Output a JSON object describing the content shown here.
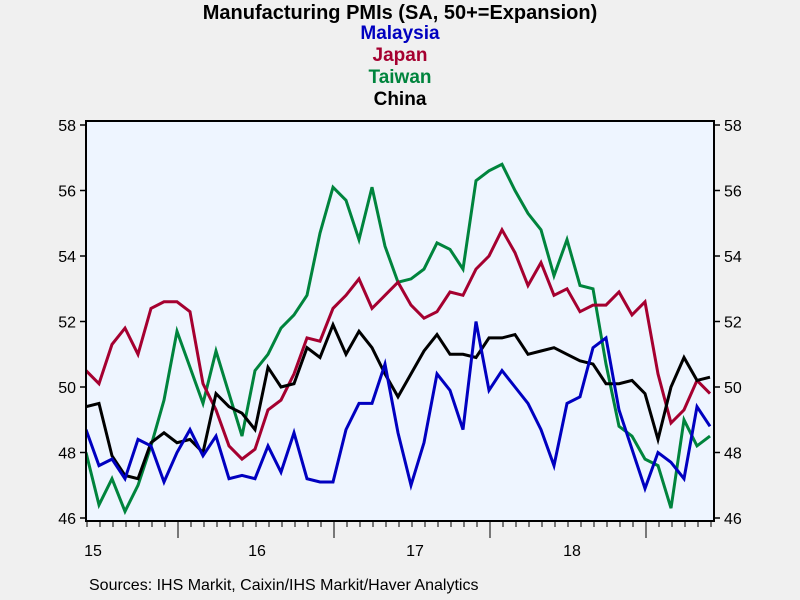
{
  "chart_data": {
    "type": "line",
    "title": "Manufacturing PMIs (SA, 50+=Expansion)",
    "xlabel": "",
    "ylabel": "",
    "ylim": [
      46,
      58
    ],
    "yticks": [
      46,
      48,
      50,
      52,
      54,
      56,
      58
    ],
    "xtick_labels": [
      "15",
      "16",
      "17",
      "18"
    ],
    "x": [
      "2015-05",
      "2015-06",
      "2015-07",
      "2015-08",
      "2015-09",
      "2015-10",
      "2015-11",
      "2015-12",
      "2016-01",
      "2016-02",
      "2016-03",
      "2016-04",
      "2016-05",
      "2016-06",
      "2016-07",
      "2016-08",
      "2016-09",
      "2016-10",
      "2016-11",
      "2016-12",
      "2017-01",
      "2017-02",
      "2017-03",
      "2017-04",
      "2017-05",
      "2017-06",
      "2017-07",
      "2017-08",
      "2017-09",
      "2017-10",
      "2017-11",
      "2017-12",
      "2018-01",
      "2018-02",
      "2018-03",
      "2018-04",
      "2018-05",
      "2018-06",
      "2018-07",
      "2018-08",
      "2018-09",
      "2018-10",
      "2018-11",
      "2018-12",
      "2019-01",
      "2019-02",
      "2019-03",
      "2019-04",
      "2019-05"
    ],
    "grid": false,
    "legend": "top-center",
    "series": [
      {
        "name": "Malaysia",
        "color": "#0000C0",
        "values": [
          48.7,
          47.6,
          47.8,
          47.2,
          48.4,
          48.2,
          47.1,
          48.0,
          48.7,
          47.9,
          48.5,
          47.2,
          47.3,
          47.2,
          48.2,
          47.4,
          48.6,
          47.2,
          47.1,
          47.1,
          48.7,
          49.5,
          49.5,
          50.7,
          48.6,
          47.0,
          48.3,
          50.4,
          49.9,
          48.7,
          52.0,
          49.9,
          50.5,
          50.0,
          49.5,
          48.7,
          47.6,
          49.5,
          49.7,
          51.2,
          51.5,
          49.3,
          48.1,
          46.9,
          48.0,
          47.7,
          47.2,
          49.4,
          48.8
        ]
      },
      {
        "name": "Japan",
        "color": "#A50030",
        "values": [
          50.5,
          50.1,
          51.3,
          51.8,
          51.0,
          52.4,
          52.6,
          52.6,
          52.3,
          50.1,
          49.3,
          48.2,
          47.8,
          48.1,
          49.3,
          49.6,
          50.4,
          51.5,
          51.4,
          52.4,
          52.8,
          53.3,
          52.4,
          52.8,
          53.2,
          52.5,
          52.1,
          52.3,
          52.9,
          52.8,
          53.6,
          54.0,
          54.8,
          54.1,
          53.1,
          53.8,
          52.8,
          53.0,
          52.3,
          52.5,
          52.5,
          52.9,
          52.2,
          52.6,
          50.4,
          48.9,
          49.3,
          50.2,
          49.8
        ]
      },
      {
        "name": "Taiwan",
        "color": "#00843D",
        "values": [
          48.0,
          46.4,
          47.2,
          46.2,
          47.0,
          48.2,
          49.6,
          51.7,
          50.6,
          49.5,
          51.1,
          49.8,
          48.5,
          50.5,
          51.0,
          51.8,
          52.2,
          52.8,
          54.7,
          56.1,
          55.7,
          54.5,
          56.1,
          54.3,
          53.2,
          53.3,
          53.6,
          54.4,
          54.2,
          53.6,
          56.3,
          56.6,
          56.8,
          56.0,
          55.3,
          54.8,
          53.4,
          54.5,
          53.1,
          53.0,
          50.7,
          48.8,
          48.5,
          47.8,
          47.6,
          46.3,
          49.0,
          48.2,
          48.5
        ]
      },
      {
        "name": "China",
        "color": "#000000",
        "values": [
          49.4,
          49.5,
          47.9,
          47.3,
          47.2,
          48.3,
          48.6,
          48.3,
          48.4,
          48.0,
          49.8,
          49.4,
          49.2,
          48.7,
          50.6,
          50.0,
          50.1,
          51.2,
          50.9,
          51.9,
          51.0,
          51.7,
          51.2,
          50.4,
          49.7,
          50.4,
          51.1,
          51.6,
          51.0,
          51.0,
          50.9,
          51.5,
          51.5,
          51.6,
          51.0,
          51.1,
          51.2,
          51.0,
          50.8,
          50.7,
          50.1,
          50.1,
          50.2,
          49.8,
          48.4,
          50.0,
          50.9,
          50.2,
          50.3
        ]
      }
    ],
    "source": "Sources:  IHS Markit, Caixin/IHS Markit/Haver Analytics"
  },
  "colors": {
    "page_bg": "#F0F0F0",
    "plot_bg": "#EEF5FF"
  }
}
